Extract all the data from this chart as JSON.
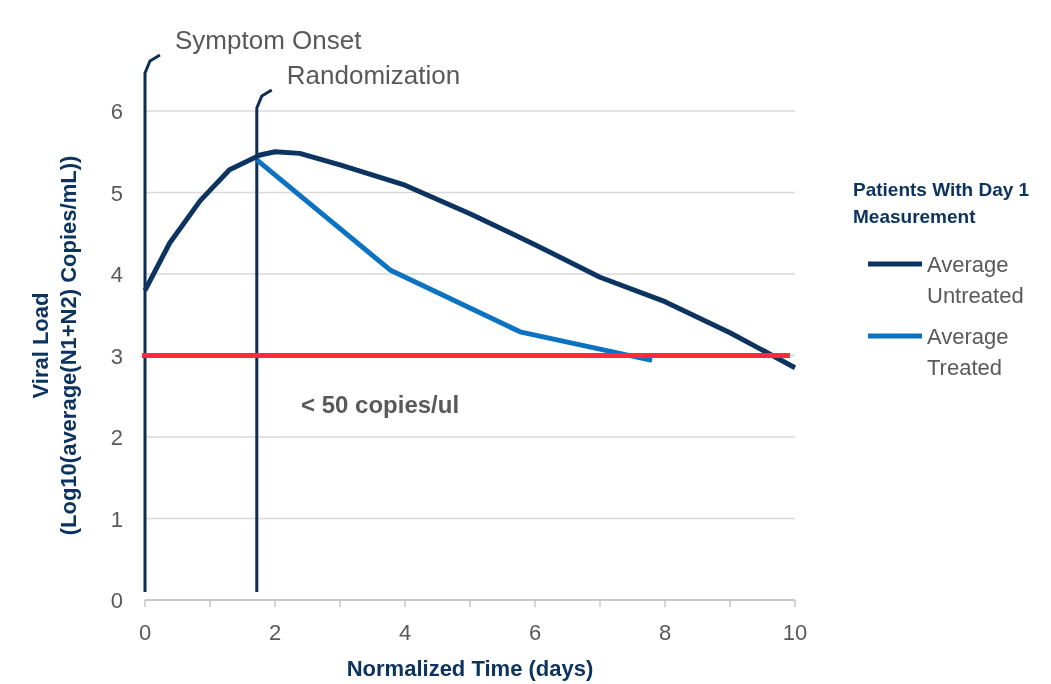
{
  "chart_data": {
    "type": "line",
    "xlabel": "Normalized Time (days)",
    "ylabel": "Viral Load\n(Log10(average(N1+N2) Copies/mL))",
    "legend_title": "Patients With Day 1 Measurement",
    "xlim": [
      0,
      10
    ],
    "ylim": [
      0,
      6
    ],
    "xticks": [
      0,
      {
        "value": 1,
        "label": null
      },
      2,
      {
        "value": 3,
        "label": null
      },
      4,
      {
        "value": 5,
        "label": null
      },
      6,
      {
        "value": 7,
        "label": null
      },
      8,
      {
        "value": 9,
        "label": null
      },
      10
    ],
    "yticks": [
      0,
      1,
      2,
      3,
      4,
      5,
      6
    ],
    "grid": "y",
    "legend": "right",
    "marker": "none",
    "line_style": "solid",
    "series": [
      {
        "name": "Average Untreated",
        "color": "#0d3461",
        "x": [
          0,
          0.38,
          0.85,
          1.3,
          1.77,
          2,
          2.38,
          3,
          4,
          5,
          6,
          7,
          8,
          9,
          10
        ],
        "values": [
          3.8,
          4.38,
          4.9,
          5.28,
          5.46,
          5.5,
          5.48,
          5.34,
          5.09,
          4.74,
          4.36,
          3.96,
          3.66,
          3.28,
          2.85
        ]
      },
      {
        "name": "Average Treated",
        "color": "#0b73c2",
        "x": [
          1.72,
          3.77,
          5.77,
          7.8
        ],
        "values": [
          5.4,
          4.05,
          3.29,
          2.94
        ]
      }
    ],
    "ref_lines": [
      {
        "axis": "x",
        "value": 0,
        "label": "Symptom Onset",
        "color": "#0d2d55"
      },
      {
        "axis": "x",
        "value": 1.72,
        "label": "Randomization",
        "color": "#0d2d55"
      },
      {
        "axis": "y",
        "value": 3,
        "label": "< 50 copies/ul",
        "color": "#ff2b3a"
      }
    ]
  }
}
